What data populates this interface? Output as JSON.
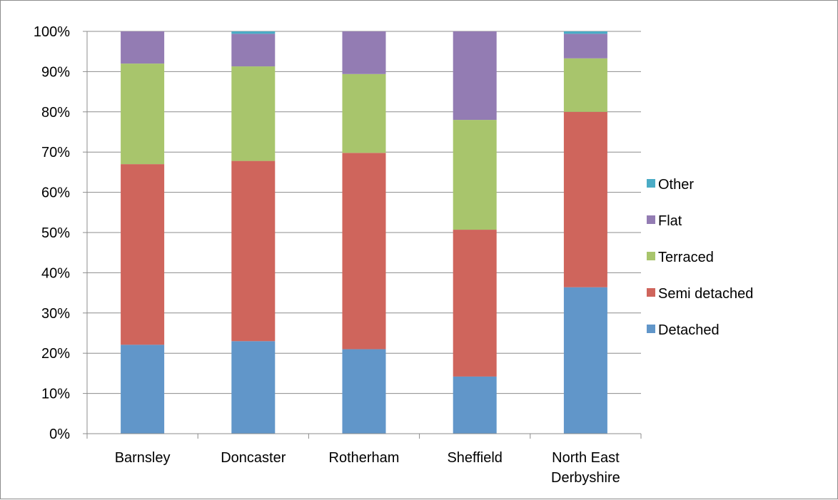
{
  "chart_data": {
    "type": "bar",
    "stacked": true,
    "percent": true,
    "categories": [
      [
        "Barnsley"
      ],
      [
        "Doncaster"
      ],
      [
        "Rotherham"
      ],
      [
        "Sheffield"
      ],
      [
        "North East",
        "Derbyshire"
      ]
    ],
    "series": [
      {
        "name": "Detached",
        "color": "#6196C9",
        "values": [
          22.1,
          23.0,
          21.0,
          14.2,
          36.4
        ]
      },
      {
        "name": "Semi detached",
        "color": "#CF655C",
        "values": [
          44.9,
          44.8,
          48.8,
          36.5,
          43.6
        ]
      },
      {
        "name": "Terraced",
        "color": "#A8C56C",
        "values": [
          25.0,
          23.5,
          19.6,
          27.3,
          13.3
        ]
      },
      {
        "name": "Flat",
        "color": "#937CB3",
        "values": [
          8.0,
          8.1,
          10.6,
          22.0,
          6.1
        ]
      },
      {
        "name": "Other",
        "color": "#4BACC6",
        "values": [
          0.0,
          0.6,
          0.0,
          0.0,
          0.6
        ]
      }
    ],
    "yticks": [
      "0%",
      "10%",
      "20%",
      "30%",
      "40%",
      "50%",
      "60%",
      "70%",
      "80%",
      "90%",
      "100%"
    ],
    "ylim": [
      0,
      100
    ],
    "grid": true,
    "legend_position": "right"
  }
}
